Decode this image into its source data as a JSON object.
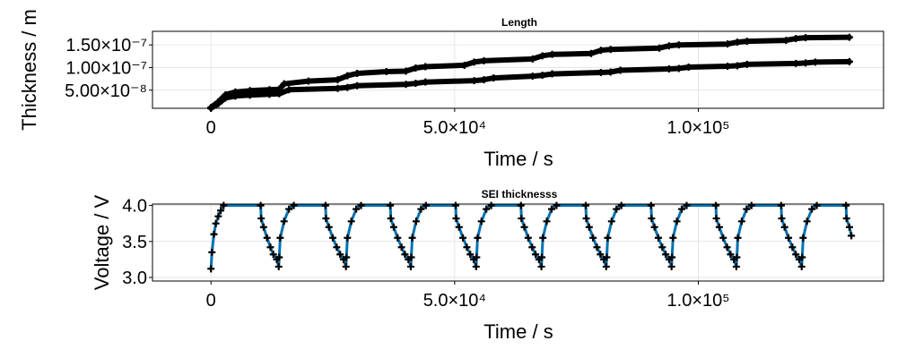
{
  "chart_data": [
    {
      "type": "line",
      "title": "Length",
      "xlabel": "Time / s",
      "ylabel": "Thickness / m",
      "xlim": [
        -12000,
        138000
      ],
      "ylim": [
        1e-08,
        1.8e-07
      ],
      "grid": true,
      "xticks": [
        0,
        50000,
        100000
      ],
      "xtick_labels": [
        "0",
        "5.0×10⁴",
        "1.0×10⁵"
      ],
      "yticks": [
        5e-08,
        1e-07,
        1.5e-07
      ],
      "ytick_labels": [
        "5.00×10⁻⁸",
        "1.00×10⁻⁷",
        "1.50×10⁻⁷"
      ],
      "series": [
        {
          "color": "#000000",
          "marker": "plus",
          "x": [
            0,
            1500,
            3000,
            5000,
            8000,
            12000,
            14000,
            15000,
            20000,
            26000,
            28000,
            30000,
            36000,
            40000,
            42000,
            44000,
            52000,
            54000,
            56000,
            66000,
            68000,
            70000,
            78000,
            80000,
            82000,
            92000,
            94000,
            96000,
            106000,
            108000,
            110000,
            118000,
            120000,
            122000,
            131000
          ],
          "y": [
            1.2e-08,
            2.4e-08,
            4e-08,
            4.6e-08,
            4.9e-08,
            5.1e-08,
            5.2e-08,
            6.4e-08,
            7e-08,
            7.3e-08,
            8.2e-08,
            8.7e-08,
            9.1e-08,
            9.2e-08,
            9.9e-08,
            1.02e-07,
            1.05e-07,
            1.12e-07,
            1.15e-07,
            1.19e-07,
            1.26e-07,
            1.29e-07,
            1.31e-07,
            1.38e-07,
            1.4e-07,
            1.43e-07,
            1.48e-07,
            1.5e-07,
            1.52e-07,
            1.56e-07,
            1.58e-07,
            1.6e-07,
            1.64e-07,
            1.66e-07,
            1.67e-07
          ]
        },
        {
          "color": "#000000",
          "marker": "plus",
          "x": [
            0,
            1500,
            3000,
            5000,
            8000,
            12000,
            14000,
            16000,
            26000,
            28000,
            30000,
            40000,
            42000,
            44000,
            54000,
            56000,
            58000,
            66000,
            68000,
            70000,
            80000,
            82000,
            84000,
            94000,
            96000,
            98000,
            106000,
            108000,
            110000,
            120000,
            122000,
            124000,
            131000
          ],
          "y": [
            1e-08,
            2e-08,
            3.3e-08,
            3.7e-08,
            3.9e-08,
            4.1e-08,
            4.2e-08,
            5.1e-08,
            5.4e-08,
            5.6e-08,
            6e-08,
            6.3e-08,
            6.5e-08,
            6.8e-08,
            7.1e-08,
            7.3e-08,
            7.7e-08,
            8.1e-08,
            8.3e-08,
            8.6e-08,
            8.9e-08,
            9e-08,
            9.4e-08,
            9.7e-08,
            9.8e-08,
            1.01e-07,
            1.03e-07,
            1.04e-07,
            1.07e-07,
            1.09e-07,
            1.1e-07,
            1.12e-07,
            1.13e-07
          ]
        }
      ]
    },
    {
      "type": "line",
      "title": "SEI thicknesss",
      "xlabel": "Time / s",
      "ylabel": "Voltage / V",
      "xlim": [
        -12000,
        138000
      ],
      "ylim": [
        2.95,
        4.02
      ],
      "grid": true,
      "xticks": [
        0,
        50000,
        100000
      ],
      "xtick_labels": [
        "0",
        "5.0×10⁴",
        "1.0×10⁵"
      ],
      "yticks": [
        3.0,
        3.5,
        4.0
      ],
      "ytick_labels": [
        "3.0",
        "3.5",
        "4.0"
      ],
      "series": [
        {
          "color": "#000000",
          "marker": "plus",
          "line_color": "#0072b2",
          "x": [
            0,
            200,
            600,
            1000,
            1500,
            2000,
            2600,
            10200,
            10300,
            10800,
            11500,
            12200,
            12800,
            13500,
            13900,
            14000,
            14200,
            15000,
            16000,
            17000,
            23500,
            23600,
            24200,
            25000,
            25800,
            26500,
            27200,
            27700,
            27800,
            28000,
            28800,
            29800,
            30800,
            36800,
            36900,
            37500,
            38300,
            39100,
            39800,
            40500,
            41000,
            41100,
            41300,
            42100,
            43100,
            44100,
            50200,
            50300,
            50900,
            51700,
            52500,
            53200,
            53900,
            54400,
            54500,
            54700,
            55500,
            56500,
            57500,
            63600,
            63700,
            64300,
            65100,
            65900,
            66600,
            67300,
            67800,
            67900,
            68100,
            68900,
            69900,
            70900,
            76900,
            77000,
            77600,
            78400,
            79200,
            79900,
            80600,
            81100,
            81200,
            81400,
            82200,
            83200,
            84200,
            90300,
            90400,
            91000,
            91800,
            92600,
            93300,
            94000,
            94500,
            94600,
            94800,
            95600,
            96600,
            97600,
            103600,
            103700,
            104300,
            105100,
            105900,
            106600,
            107300,
            107800,
            107900,
            108100,
            108900,
            109900,
            110900,
            117000,
            117100,
            117700,
            118500,
            119300,
            120000,
            120700,
            121200,
            121300,
            121500,
            122300,
            123300,
            124300,
            130300,
            130400,
            131000,
            131400
          ],
          "y": [
            3.12,
            3.35,
            3.6,
            3.75,
            3.85,
            3.93,
            4.0,
            4.0,
            3.82,
            3.7,
            3.55,
            3.42,
            3.32,
            3.25,
            3.15,
            3.28,
            3.55,
            3.78,
            3.95,
            4.0,
            4.0,
            3.82,
            3.7,
            3.55,
            3.42,
            3.32,
            3.25,
            3.15,
            3.28,
            3.55,
            3.78,
            3.95,
            4.0,
            4.0,
            3.82,
            3.7,
            3.55,
            3.42,
            3.32,
            3.25,
            3.15,
            3.28,
            3.55,
            3.78,
            3.95,
            4.0,
            4.0,
            3.82,
            3.7,
            3.55,
            3.42,
            3.32,
            3.25,
            3.15,
            3.28,
            3.55,
            3.78,
            3.95,
            4.0,
            4.0,
            3.82,
            3.7,
            3.55,
            3.42,
            3.32,
            3.25,
            3.15,
            3.28,
            3.55,
            3.78,
            3.95,
            4.0,
            4.0,
            3.82,
            3.7,
            3.55,
            3.42,
            3.32,
            3.25,
            3.15,
            3.28,
            3.55,
            3.78,
            3.95,
            4.0,
            4.0,
            3.82,
            3.7,
            3.55,
            3.42,
            3.32,
            3.25,
            3.15,
            3.28,
            3.55,
            3.78,
            3.95,
            4.0,
            4.0,
            3.82,
            3.7,
            3.55,
            3.42,
            3.32,
            3.25,
            3.15,
            3.28,
            3.55,
            3.78,
            3.95,
            4.0,
            4.0,
            3.82,
            3.7,
            3.55,
            3.42,
            3.32,
            3.25,
            3.15,
            3.28,
            3.55,
            3.78,
            3.95,
            4.0,
            4.0,
            3.82,
            3.7,
            3.58
          ]
        }
      ]
    }
  ]
}
